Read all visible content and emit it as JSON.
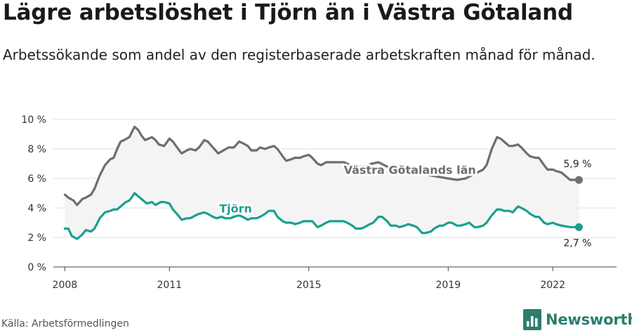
{
  "title": "Lägre arbetslöshet i Tjörn än i Västra Götaland",
  "subtitle": "Arbetssökande som andel av den registerbaserade arbetskraften månad för månad.",
  "source": "Källa: Arbetsförmedlingen",
  "brand": "Newsworthy",
  "colors": {
    "vg": "#6e6e6e",
    "tjorn": "#1aa090",
    "band": "#f4f4f4",
    "grid": "#e2e2e2",
    "brand": "#2c7d6e"
  },
  "chart_data": {
    "type": "line",
    "title": "Lägre arbetslöshet i Tjörn än i Västra Götaland",
    "xlabel": "",
    "ylabel": "",
    "ylim": [
      0,
      10
    ],
    "xlim": [
      2007.67,
      2023.83
    ],
    "yticks": [
      0,
      2,
      4,
      6,
      8,
      10
    ],
    "ytick_labels": [
      "0 %",
      "2 %",
      "4 %",
      "6 %",
      "8 %",
      "10 %"
    ],
    "xticks": [
      2008,
      2011,
      2015,
      2019,
      2022
    ],
    "xtick_labels": [
      "2008",
      "2011",
      "2015",
      "2019",
      "2022"
    ],
    "grid": true,
    "series": [
      {
        "name": "Västra Götalands län",
        "color": "#6e6e6e",
        "end_label": "5,9 %",
        "points": [
          [
            2008.0,
            4.9
          ],
          [
            2008.1,
            4.7
          ],
          [
            2008.25,
            4.5
          ],
          [
            2008.35,
            4.2
          ],
          [
            2008.5,
            4.6
          ],
          [
            2008.6,
            4.7
          ],
          [
            2008.75,
            4.9
          ],
          [
            2008.85,
            5.3
          ],
          [
            2009.0,
            6.2
          ],
          [
            2009.15,
            6.9
          ],
          [
            2009.3,
            7.3
          ],
          [
            2009.4,
            7.4
          ],
          [
            2009.5,
            8.0
          ],
          [
            2009.6,
            8.5
          ],
          [
            2009.7,
            8.6
          ],
          [
            2009.85,
            8.8
          ],
          [
            2010.0,
            9.5
          ],
          [
            2010.1,
            9.3
          ],
          [
            2010.2,
            8.9
          ],
          [
            2010.3,
            8.6
          ],
          [
            2010.4,
            8.7
          ],
          [
            2010.5,
            8.8
          ],
          [
            2010.6,
            8.6
          ],
          [
            2010.7,
            8.3
          ],
          [
            2010.85,
            8.2
          ],
          [
            2011.0,
            8.7
          ],
          [
            2011.1,
            8.5
          ],
          [
            2011.25,
            8.0
          ],
          [
            2011.35,
            7.7
          ],
          [
            2011.5,
            7.9
          ],
          [
            2011.6,
            8.0
          ],
          [
            2011.75,
            7.9
          ],
          [
            2011.85,
            8.1
          ],
          [
            2012.0,
            8.6
          ],
          [
            2012.1,
            8.5
          ],
          [
            2012.25,
            8.1
          ],
          [
            2012.4,
            7.7
          ],
          [
            2012.55,
            7.9
          ],
          [
            2012.7,
            8.1
          ],
          [
            2012.85,
            8.1
          ],
          [
            2013.0,
            8.5
          ],
          [
            2013.1,
            8.4
          ],
          [
            2013.25,
            8.2
          ],
          [
            2013.35,
            7.9
          ],
          [
            2013.5,
            7.9
          ],
          [
            2013.6,
            8.1
          ],
          [
            2013.75,
            8.0
          ],
          [
            2013.85,
            8.1
          ],
          [
            2014.0,
            8.2
          ],
          [
            2014.1,
            8.0
          ],
          [
            2014.25,
            7.5
          ],
          [
            2014.35,
            7.2
          ],
          [
            2014.5,
            7.3
          ],
          [
            2014.6,
            7.4
          ],
          [
            2014.75,
            7.4
          ],
          [
            2014.85,
            7.5
          ],
          [
            2015.0,
            7.6
          ],
          [
            2015.1,
            7.4
          ],
          [
            2015.25,
            7.0
          ],
          [
            2015.35,
            6.9
          ],
          [
            2015.5,
            7.1
          ],
          [
            2015.7,
            7.1
          ],
          [
            2015.85,
            7.1
          ],
          [
            2016.0,
            7.1
          ],
          [
            2016.2,
            6.9
          ],
          [
            2016.4,
            6.8
          ],
          [
            2016.6,
            6.8
          ],
          [
            2016.8,
            7.0
          ],
          [
            2017.0,
            7.1
          ],
          [
            2017.25,
            6.8
          ],
          [
            2017.5,
            6.6
          ],
          [
            2017.75,
            6.5
          ],
          [
            2018.0,
            6.6
          ],
          [
            2018.25,
            6.3
          ],
          [
            2018.5,
            6.2
          ],
          [
            2018.75,
            6.1
          ],
          [
            2019.0,
            6.0
          ],
          [
            2019.25,
            5.9
          ],
          [
            2019.5,
            6.0
          ],
          [
            2019.75,
            6.3
          ],
          [
            2020.0,
            6.6
          ],
          [
            2020.1,
            6.9
          ],
          [
            2020.25,
            8.0
          ],
          [
            2020.4,
            8.8
          ],
          [
            2020.5,
            8.7
          ],
          [
            2020.6,
            8.5
          ],
          [
            2020.75,
            8.2
          ],
          [
            2020.85,
            8.2
          ],
          [
            2021.0,
            8.3
          ],
          [
            2021.1,
            8.1
          ],
          [
            2021.25,
            7.7
          ],
          [
            2021.35,
            7.5
          ],
          [
            2021.5,
            7.4
          ],
          [
            2021.6,
            7.4
          ],
          [
            2021.75,
            6.9
          ],
          [
            2021.85,
            6.6
          ],
          [
            2022.0,
            6.6
          ],
          [
            2022.1,
            6.5
          ],
          [
            2022.25,
            6.4
          ],
          [
            2022.35,
            6.2
          ],
          [
            2022.5,
            5.9
          ],
          [
            2022.6,
            5.9
          ],
          [
            2022.75,
            5.9
          ]
        ]
      },
      {
        "name": "Tjörn",
        "color": "#1aa090",
        "end_label": "2,7 %",
        "points": [
          [
            2008.0,
            2.6
          ],
          [
            2008.1,
            2.6
          ],
          [
            2008.2,
            2.1
          ],
          [
            2008.35,
            1.9
          ],
          [
            2008.5,
            2.2
          ],
          [
            2008.6,
            2.5
          ],
          [
            2008.75,
            2.4
          ],
          [
            2008.85,
            2.6
          ],
          [
            2009.0,
            3.3
          ],
          [
            2009.15,
            3.7
          ],
          [
            2009.3,
            3.8
          ],
          [
            2009.4,
            3.9
          ],
          [
            2009.5,
            3.9
          ],
          [
            2009.6,
            4.1
          ],
          [
            2009.75,
            4.4
          ],
          [
            2009.85,
            4.5
          ],
          [
            2010.0,
            5.0
          ],
          [
            2010.1,
            4.8
          ],
          [
            2010.25,
            4.5
          ],
          [
            2010.35,
            4.3
          ],
          [
            2010.5,
            4.4
          ],
          [
            2010.6,
            4.2
          ],
          [
            2010.75,
            4.4
          ],
          [
            2010.85,
            4.4
          ],
          [
            2011.0,
            4.3
          ],
          [
            2011.1,
            3.9
          ],
          [
            2011.25,
            3.5
          ],
          [
            2011.35,
            3.2
          ],
          [
            2011.5,
            3.3
          ],
          [
            2011.6,
            3.3
          ],
          [
            2011.75,
            3.5
          ],
          [
            2011.85,
            3.6
          ],
          [
            2012.0,
            3.7
          ],
          [
            2012.1,
            3.6
          ],
          [
            2012.25,
            3.4
          ],
          [
            2012.35,
            3.3
          ],
          [
            2012.5,
            3.4
          ],
          [
            2012.6,
            3.3
          ],
          [
            2012.75,
            3.3
          ],
          [
            2012.85,
            3.4
          ],
          [
            2013.0,
            3.5
          ],
          [
            2013.1,
            3.4
          ],
          [
            2013.25,
            3.2
          ],
          [
            2013.35,
            3.3
          ],
          [
            2013.5,
            3.3
          ],
          [
            2013.6,
            3.4
          ],
          [
            2013.75,
            3.6
          ],
          [
            2013.85,
            3.8
          ],
          [
            2014.0,
            3.8
          ],
          [
            2014.1,
            3.4
          ],
          [
            2014.25,
            3.1
          ],
          [
            2014.35,
            3.0
          ],
          [
            2014.5,
            3.0
          ],
          [
            2014.6,
            2.9
          ],
          [
            2014.75,
            3.0
          ],
          [
            2014.85,
            3.1
          ],
          [
            2015.0,
            3.1
          ],
          [
            2015.1,
            3.1
          ],
          [
            2015.25,
            2.7
          ],
          [
            2015.35,
            2.8
          ],
          [
            2015.5,
            3.0
          ],
          [
            2015.6,
            3.1
          ],
          [
            2015.75,
            3.1
          ],
          [
            2015.85,
            3.1
          ],
          [
            2016.0,
            3.1
          ],
          [
            2016.1,
            3.0
          ],
          [
            2016.25,
            2.8
          ],
          [
            2016.35,
            2.6
          ],
          [
            2016.5,
            2.6
          ],
          [
            2016.6,
            2.7
          ],
          [
            2016.75,
            2.9
          ],
          [
            2016.85,
            3.0
          ],
          [
            2017.0,
            3.4
          ],
          [
            2017.1,
            3.4
          ],
          [
            2017.25,
            3.1
          ],
          [
            2017.35,
            2.8
          ],
          [
            2017.5,
            2.8
          ],
          [
            2017.6,
            2.7
          ],
          [
            2017.75,
            2.8
          ],
          [
            2017.85,
            2.9
          ],
          [
            2018.0,
            2.8
          ],
          [
            2018.1,
            2.7
          ],
          [
            2018.25,
            2.3
          ],
          [
            2018.35,
            2.3
          ],
          [
            2018.5,
            2.4
          ],
          [
            2018.6,
            2.6
          ],
          [
            2018.75,
            2.8
          ],
          [
            2018.85,
            2.8
          ],
          [
            2019.0,
            3.0
          ],
          [
            2019.1,
            3.0
          ],
          [
            2019.25,
            2.8
          ],
          [
            2019.35,
            2.8
          ],
          [
            2019.5,
            2.9
          ],
          [
            2019.6,
            3.0
          ],
          [
            2019.75,
            2.7
          ],
          [
            2019.85,
            2.7
          ],
          [
            2020.0,
            2.8
          ],
          [
            2020.1,
            3.0
          ],
          [
            2020.25,
            3.5
          ],
          [
            2020.4,
            3.9
          ],
          [
            2020.5,
            3.9
          ],
          [
            2020.6,
            3.8
          ],
          [
            2020.75,
            3.8
          ],
          [
            2020.85,
            3.7
          ],
          [
            2021.0,
            4.1
          ],
          [
            2021.1,
            4.0
          ],
          [
            2021.25,
            3.8
          ],
          [
            2021.35,
            3.6
          ],
          [
            2021.5,
            3.4
          ],
          [
            2021.6,
            3.4
          ],
          [
            2021.75,
            3.0
          ],
          [
            2021.85,
            2.9
          ],
          [
            2022.0,
            3.0
          ],
          [
            2022.1,
            2.9
          ],
          [
            2022.25,
            2.8
          ],
          [
            2022.5,
            2.7
          ],
          [
            2022.75,
            2.7
          ]
        ]
      }
    ]
  }
}
